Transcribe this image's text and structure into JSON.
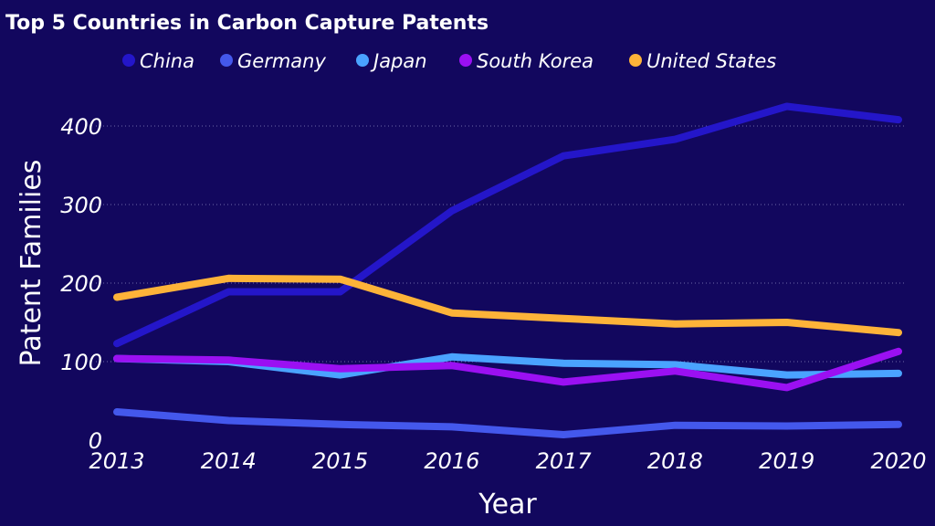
{
  "chart_data": {
    "type": "line",
    "title": "Top 5 Countries in Carbon Capture Patents",
    "xlabel": "Year",
    "ylabel": "Patent Families",
    "x": [
      "2013",
      "2014",
      "2015",
      "2016",
      "2017",
      "2018",
      "2019",
      "2020"
    ],
    "ylim": [
      0,
      450
    ],
    "yticks": [
      "0",
      "100",
      "200",
      "300",
      "400"
    ],
    "grid": true,
    "legend_position": "top",
    "series": [
      {
        "name": "China",
        "color": "#2416c9",
        "values": [
          123,
          189,
          189,
          292,
          362,
          383,
          425,
          408
        ]
      },
      {
        "name": "Germany",
        "color": "#4458ec",
        "values": [
          36,
          25,
          20,
          17,
          7,
          19,
          18,
          20
        ]
      },
      {
        "name": "Japan",
        "color": "#4aa3ff",
        "values": [
          104,
          100,
          83,
          106,
          98,
          96,
          83,
          85
        ]
      },
      {
        "name": "South Korea",
        "color": "#9b10f2",
        "values": [
          104,
          102,
          91,
          95,
          74,
          88,
          67,
          113
        ]
      },
      {
        "name": "United States",
        "color": "#fdb339",
        "values": [
          182,
          206,
          205,
          162,
          155,
          148,
          150,
          137
        ]
      }
    ]
  }
}
